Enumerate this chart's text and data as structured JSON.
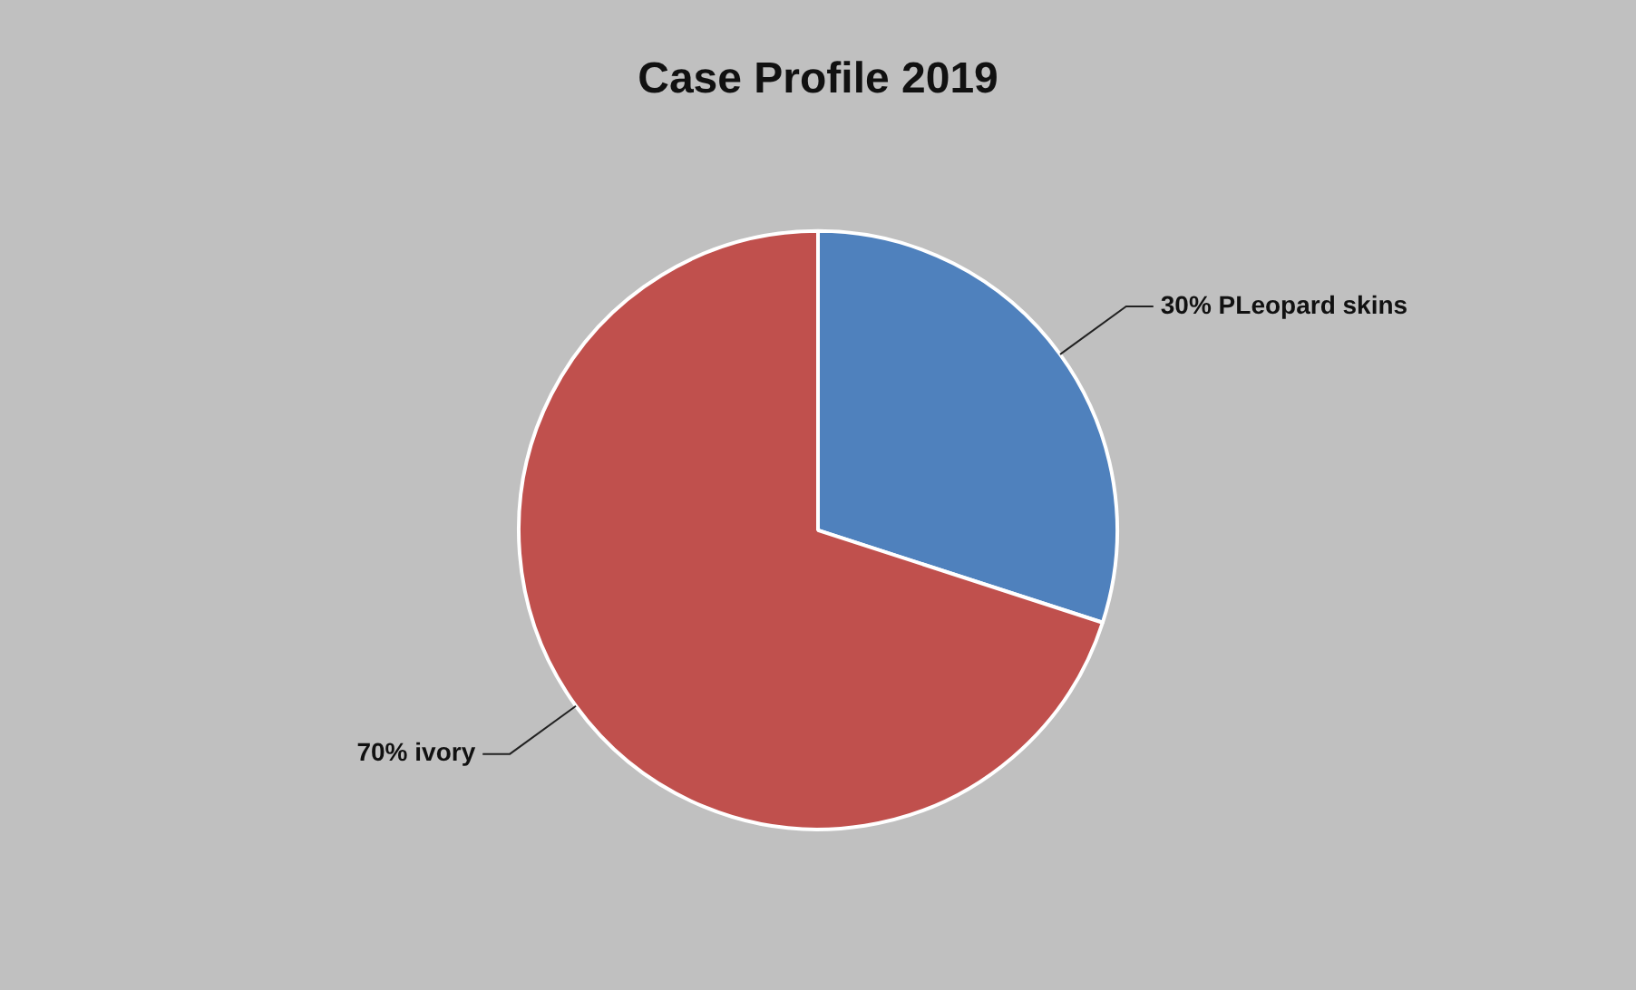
{
  "chart_data": {
    "type": "pie",
    "title": "Case Profile 2019",
    "categories": [
      "PLeopard skins",
      "ivory"
    ],
    "values": [
      30,
      70
    ],
    "colors": [
      "#4f81bd",
      "#c0504d"
    ],
    "value_labels": [
      "30%",
      "70%"
    ],
    "legend": false
  }
}
